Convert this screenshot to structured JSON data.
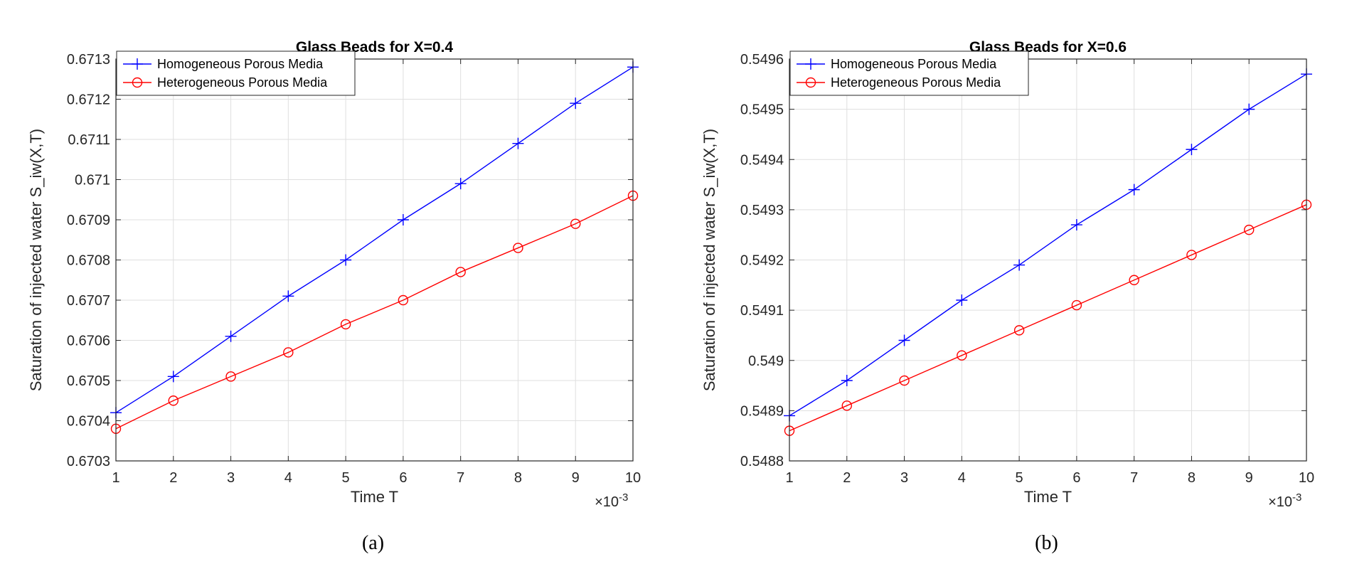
{
  "chart_data": [
    {
      "type": "line",
      "title": "Glass Beads for X=0.4",
      "xlabel": "Time T",
      "ylabel": "Saturation of injected water S_iw(X,T)",
      "x_exponent": "×10",
      "x_exponent_power": "-3",
      "caption": "(a)",
      "x": [
        1,
        2,
        3,
        4,
        5,
        6,
        7,
        8,
        9,
        10
      ],
      "xlim": [
        1,
        10
      ],
      "ylim": [
        0.6703,
        0.6713
      ],
      "xticks": [
        "1",
        "2",
        "3",
        "4",
        "5",
        "6",
        "7",
        "8",
        "9",
        "10"
      ],
      "yticks": [
        "0.6703",
        "0.6704",
        "0.6705",
        "0.6706",
        "0.6707",
        "0.6708",
        "0.6709",
        "0.671",
        "0.6711",
        "0.6712",
        "0.6713"
      ],
      "ytick_values": [
        0.6703,
        0.6704,
        0.6705,
        0.6706,
        0.6707,
        0.6708,
        0.6709,
        0.671,
        0.6711,
        0.6712,
        0.6713
      ],
      "grid": true,
      "legend_position": "top-left",
      "series": [
        {
          "name": "Homogeneous Porous Media",
          "color": "#0000ff",
          "marker": "plus",
          "values": [
            0.67042,
            0.67051,
            0.67061,
            0.67071,
            0.6708,
            0.6709,
            0.67099,
            0.67109,
            0.67119,
            0.67128
          ]
        },
        {
          "name": "Heterogeneous Porous Media",
          "color": "#ff0000",
          "marker": "circle",
          "values": [
            0.67038,
            0.67045,
            0.67051,
            0.67057,
            0.67064,
            0.6707,
            0.67077,
            0.67083,
            0.67089,
            0.67096
          ]
        }
      ]
    },
    {
      "type": "line",
      "title": "Glass Beads for X=0.6",
      "xlabel": "Time T",
      "ylabel": "Saturation of injected water S_iw(X,T)",
      "x_exponent": "×10",
      "x_exponent_power": "-3",
      "caption": "(b)",
      "x": [
        1,
        2,
        3,
        4,
        5,
        6,
        7,
        8,
        9,
        10
      ],
      "xlim": [
        1,
        10
      ],
      "ylim": [
        0.5488,
        0.5496
      ],
      "xticks": [
        "1",
        "2",
        "3",
        "4",
        "5",
        "6",
        "7",
        "8",
        "9",
        "10"
      ],
      "yticks": [
        "0.5488",
        "0.5489",
        "0.549",
        "0.5491",
        "0.5492",
        "0.5493",
        "0.5494",
        "0.5495",
        "0.5496"
      ],
      "ytick_values": [
        0.5488,
        0.5489,
        0.549,
        0.5491,
        0.5492,
        0.5493,
        0.5494,
        0.5495,
        0.5496
      ],
      "grid": true,
      "legend_position": "top-left",
      "series": [
        {
          "name": "Homogeneous Porous Media",
          "color": "#0000ff",
          "marker": "plus",
          "values": [
            0.54889,
            0.54896,
            0.54904,
            0.54912,
            0.54919,
            0.54927,
            0.54934,
            0.54942,
            0.5495,
            0.54957
          ]
        },
        {
          "name": "Heterogeneous Porous Media",
          "color": "#ff0000",
          "marker": "circle",
          "values": [
            0.54886,
            0.54891,
            0.54896,
            0.54901,
            0.54906,
            0.54911,
            0.54916,
            0.54921,
            0.54926,
            0.54931
          ]
        }
      ]
    }
  ]
}
